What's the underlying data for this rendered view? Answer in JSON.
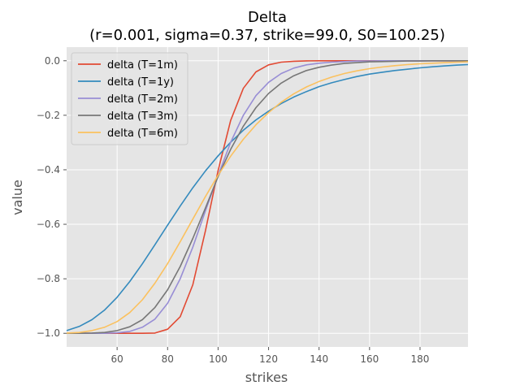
{
  "chart_data": {
    "type": "line",
    "title": "Delta",
    "subtitle": "(r=0.001, sigma=0.37, strike=99.0, S0=100.25)",
    "xlabel": "strikes",
    "ylabel": "value",
    "xlim": [
      40,
      199
    ],
    "ylim": [
      -1.05,
      0.05
    ],
    "xticks": [
      60,
      80,
      100,
      120,
      140,
      160,
      180
    ],
    "xtick_labels": [
      "60",
      "80",
      "100",
      "120",
      "140",
      "160",
      "180"
    ],
    "yticks": [
      0.0,
      -0.2,
      -0.4,
      -0.6,
      -0.8,
      -1.0
    ],
    "ytick_labels": [
      "0.0",
      "−0.2",
      "−0.4",
      "−0.6",
      "−0.8",
      "−1.0"
    ],
    "grid": true,
    "legend_position": "top-left",
    "x": [
      40,
      45,
      50,
      55,
      60,
      65,
      70,
      75,
      80,
      85,
      90,
      95,
      100,
      105,
      110,
      115,
      120,
      125,
      130,
      135,
      140,
      145,
      150,
      155,
      160,
      165,
      170,
      175,
      180,
      185,
      190,
      195,
      199
    ],
    "series": [
      {
        "name": "delta (T=1m)",
        "color": "#E24A33",
        "values": [
          -1.0,
          -1.0,
          -1.0,
          -1.0,
          -1.0,
          -1.0,
          -1.0,
          -0.999,
          -0.985,
          -0.939,
          -0.822,
          -0.623,
          -0.403,
          -0.219,
          -0.101,
          -0.041,
          -0.015,
          -0.005,
          -0.002,
          -0.0005,
          -0.0001,
          0,
          0,
          0,
          0,
          0,
          0,
          0,
          0,
          0,
          0,
          0,
          0
        ]
      },
      {
        "name": "delta (T=1y)",
        "color": "#348ABD",
        "values": [
          -0.99,
          -0.975,
          -0.95,
          -0.915,
          -0.868,
          -0.81,
          -0.745,
          -0.675,
          -0.603,
          -0.533,
          -0.466,
          -0.404,
          -0.349,
          -0.299,
          -0.255,
          -0.217,
          -0.185,
          -0.157,
          -0.133,
          -0.113,
          -0.095,
          -0.081,
          -0.069,
          -0.058,
          -0.049,
          -0.042,
          -0.036,
          -0.031,
          -0.026,
          -0.022,
          -0.019,
          -0.016,
          -0.014
        ]
      },
      {
        "name": "delta (T=2m)",
        "color": "#988ED5",
        "values": [
          -1.0,
          -1.0,
          -1.0,
          -1.0,
          -0.998,
          -0.993,
          -0.978,
          -0.948,
          -0.89,
          -0.8,
          -0.684,
          -0.55,
          -0.422,
          -0.299,
          -0.2,
          -0.128,
          -0.079,
          -0.047,
          -0.027,
          -0.015,
          -0.009,
          -0.005,
          -0.003,
          -0.001,
          -0.001,
          0,
          0,
          0,
          0,
          0,
          0,
          0,
          0
        ]
      },
      {
        "name": "delta (T=3m)",
        "color": "#777777",
        "values": [
          -1.0,
          -1.0,
          -0.999,
          -0.997,
          -0.99,
          -0.976,
          -0.95,
          -0.905,
          -0.84,
          -0.755,
          -0.652,
          -0.54,
          -0.425,
          -0.325,
          -0.24,
          -0.172,
          -0.12,
          -0.082,
          -0.055,
          -0.036,
          -0.024,
          -0.016,
          -0.01,
          -0.007,
          -0.004,
          -0.003,
          -0.002,
          -0.001,
          -0.001,
          0,
          0,
          0,
          0
        ]
      },
      {
        "name": "delta (T=6m)",
        "color": "#FBC15E",
        "values": [
          -0.999,
          -0.997,
          -0.99,
          -0.978,
          -0.957,
          -0.924,
          -0.877,
          -0.816,
          -0.744,
          -0.664,
          -0.581,
          -0.498,
          -0.42,
          -0.35,
          -0.288,
          -0.235,
          -0.19,
          -0.152,
          -0.121,
          -0.096,
          -0.076,
          -0.06,
          -0.047,
          -0.037,
          -0.029,
          -0.023,
          -0.018,
          -0.014,
          -0.011,
          -0.009,
          -0.007,
          -0.005,
          -0.004
        ]
      }
    ]
  }
}
